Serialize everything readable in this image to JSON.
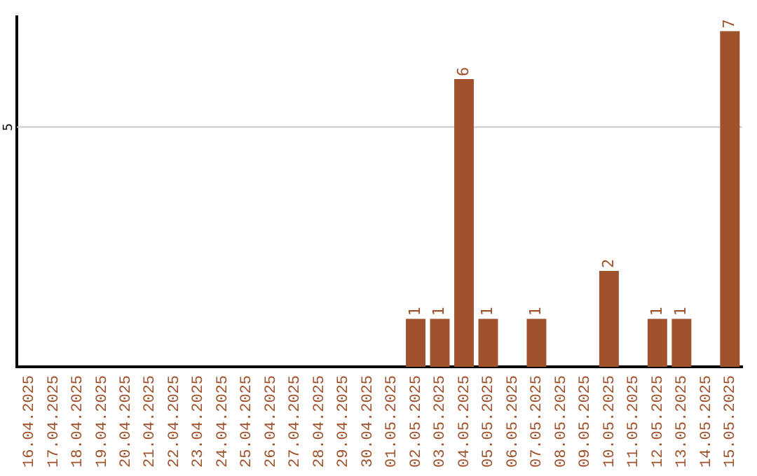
{
  "chart_data": {
    "type": "bar",
    "ylim": [
      0,
      7.3
    ],
    "categories": [
      "16.04.2025",
      "17.04.2025",
      "18.04.2025",
      "19.04.2025",
      "20.04.2025",
      "21.04.2025",
      "22.04.2025",
      "23.04.2025",
      "24.04.2025",
      "25.04.2025",
      "26.04.2025",
      "27.04.2025",
      "28.04.2025",
      "29.04.2025",
      "30.04.2025",
      "01.05.2025",
      "02.05.2025",
      "03.05.2025",
      "04.05.2025",
      "05.05.2025",
      "06.05.2025",
      "07.05.2025",
      "08.05.2025",
      "09.05.2025",
      "10.05.2025",
      "11.05.2025",
      "12.05.2025",
      "13.05.2025",
      "14.05.2025",
      "15.05.2025"
    ],
    "values": [
      null,
      null,
      null,
      null,
      null,
      null,
      null,
      null,
      null,
      null,
      null,
      null,
      null,
      null,
      null,
      null,
      1,
      1,
      6,
      1,
      null,
      1,
      null,
      null,
      2,
      null,
      1,
      1,
      null,
      7
    ],
    "data_labels": true,
    "ref_lines": [
      {
        "axis": "y",
        "value": 5,
        "label": "5",
        "color": "#c8c8c8"
      }
    ],
    "color": "#a0522d",
    "legend": false
  }
}
